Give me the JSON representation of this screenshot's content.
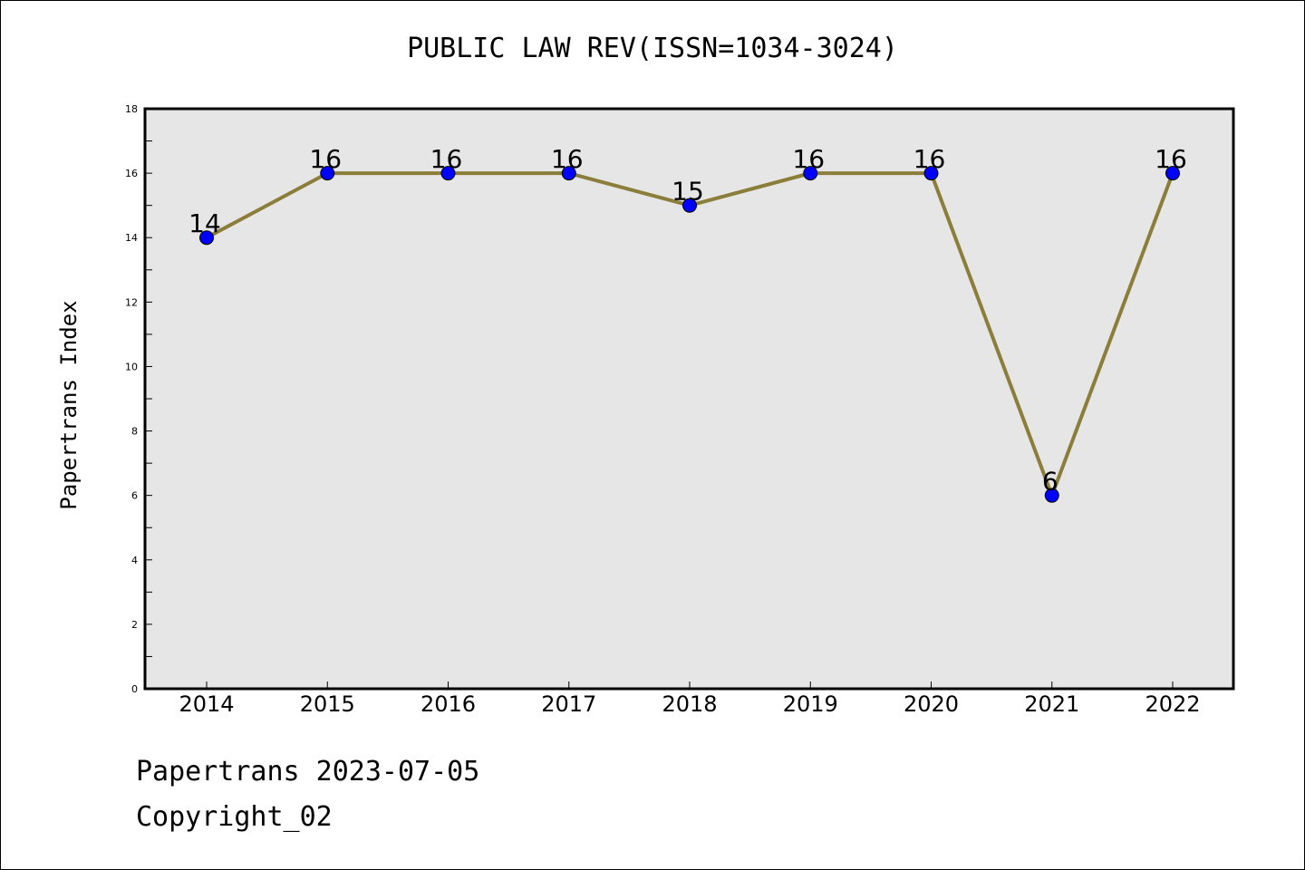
{
  "chart_data": {
    "type": "line",
    "title": "PUBLIC LAW REV(ISSN=1034-3024)",
    "xlabel": "",
    "ylabel": "Papertrans Index",
    "categories": [
      "2014",
      "2015",
      "2016",
      "2017",
      "2018",
      "2019",
      "2020",
      "2021",
      "2022"
    ],
    "series": [
      {
        "values": [
          14,
          16,
          16,
          16,
          15,
          16,
          16,
          6,
          16
        ]
      }
    ],
    "ylim": [
      0,
      18
    ],
    "yticks": [
      0,
      2,
      4,
      6,
      8,
      10,
      12,
      14,
      16,
      18
    ],
    "grid": false,
    "colors": {
      "line": "#8b7d3a",
      "marker": "#0000ff",
      "plot_bg": "#e6e6e6"
    }
  },
  "footer": {
    "line1": "Papertrans 2023-07-05",
    "line2": "Copyright_02"
  }
}
